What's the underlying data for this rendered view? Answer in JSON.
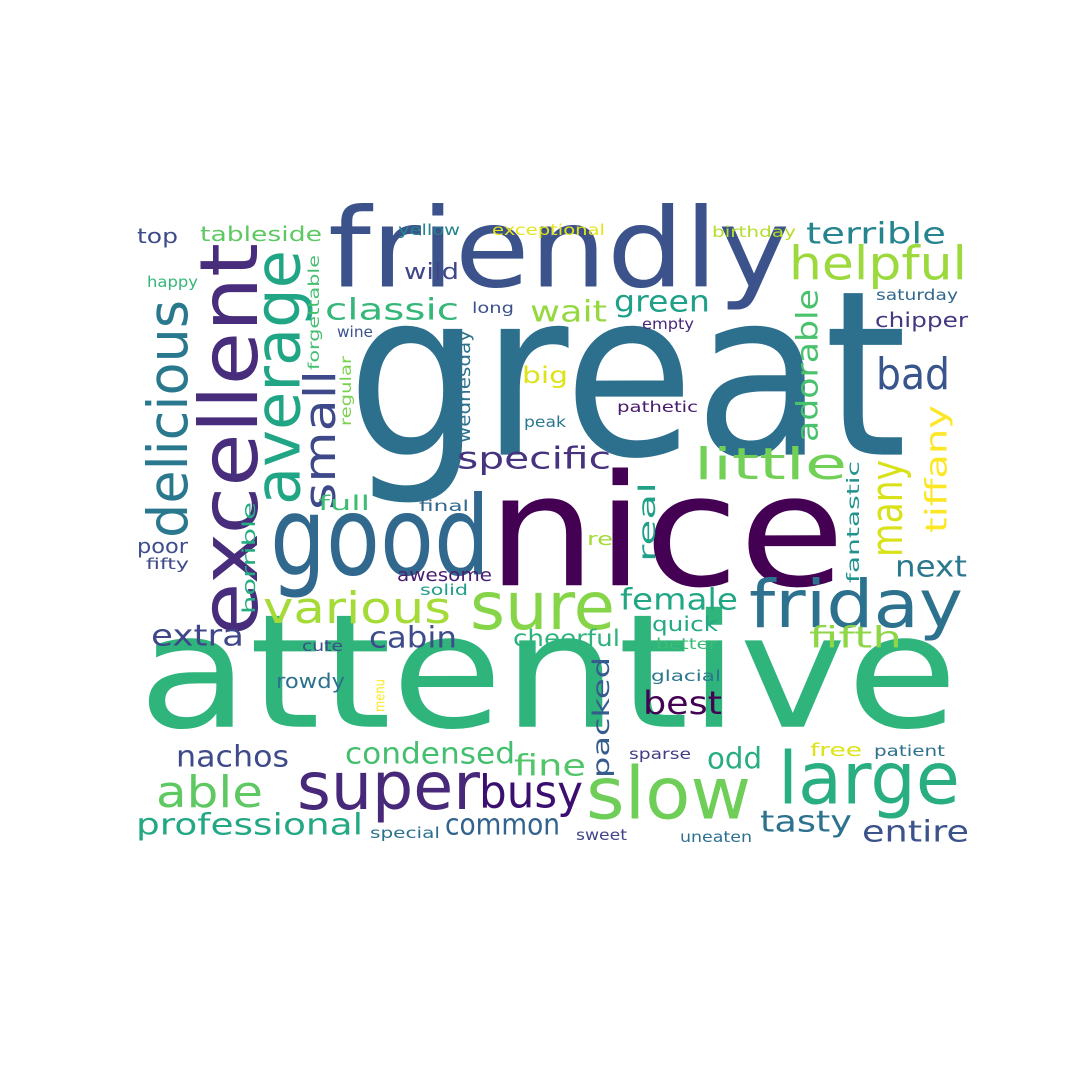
{
  "colormap": "viridis",
  "words": [
    {
      "text": "great",
      "color": "#2d708e"
    },
    {
      "text": "nice",
      "color": "#440154"
    },
    {
      "text": "attentive",
      "color": "#2fb47c"
    },
    {
      "text": "friendly",
      "color": "#3b528b"
    },
    {
      "text": "excellent",
      "color": "#472d7b"
    },
    {
      "text": "good",
      "color": "#31688e"
    },
    {
      "text": "average",
      "color": "#21a685"
    },
    {
      "text": "delicious",
      "color": "#2a788e"
    },
    {
      "text": "friday",
      "color": "#2c728e"
    },
    {
      "text": "super",
      "color": "#482878"
    },
    {
      "text": "slow",
      "color": "#6ece58"
    },
    {
      "text": "large",
      "color": "#28ae80"
    },
    {
      "text": "sure",
      "color": "#86d549"
    },
    {
      "text": "helpful",
      "color": "#9bd93c"
    },
    {
      "text": "various",
      "color": "#a5db36"
    },
    {
      "text": "little",
      "color": "#73d056"
    },
    {
      "text": "many",
      "color": "#d8e219"
    },
    {
      "text": "small",
      "color": "#3e4989"
    },
    {
      "text": "bad",
      "color": "#39568c"
    },
    {
      "text": "busy",
      "color": "#3b0f70"
    },
    {
      "text": "able",
      "color": "#5ec962"
    },
    {
      "text": "terrible",
      "color": "#25858e"
    },
    {
      "text": "professional",
      "color": "#22a884"
    },
    {
      "text": "specific",
      "color": "#46327e"
    },
    {
      "text": "classic",
      "color": "#35b779"
    },
    {
      "text": "wait",
      "color": "#95d840"
    },
    {
      "text": "green",
      "color": "#1fa088"
    },
    {
      "text": "condensed",
      "color": "#44bf70"
    },
    {
      "text": "tiffany",
      "color": "#fde725"
    },
    {
      "text": "adorable",
      "color": "#4ac16d"
    },
    {
      "text": "fifth",
      "color": "#8ed645"
    },
    {
      "text": "female",
      "color": "#22a785"
    },
    {
      "text": "next",
      "color": "#2a788e"
    },
    {
      "text": "tasty",
      "color": "#2c718e"
    },
    {
      "text": "entire",
      "color": "#3b528b"
    },
    {
      "text": "best",
      "color": "#440154"
    },
    {
      "text": "common",
      "color": "#33638d"
    },
    {
      "text": "nachos",
      "color": "#3e4a89"
    },
    {
      "text": "extra",
      "color": "#3f4788"
    },
    {
      "text": "cabin",
      "color": "#3e4c8a"
    },
    {
      "text": "cheerful",
      "color": "#2eb37c"
    },
    {
      "text": "fine",
      "color": "#52c569"
    },
    {
      "text": "odd",
      "color": "#27ad81"
    },
    {
      "text": "packed",
      "color": "#365c8d"
    },
    {
      "text": "real",
      "color": "#1fa088"
    },
    {
      "text": "big",
      "color": "#dde318"
    },
    {
      "text": "wild",
      "color": "#3f4788"
    },
    {
      "text": "top",
      "color": "#3e4a89"
    },
    {
      "text": "tableside",
      "color": "#5ec962"
    },
    {
      "text": "chipper",
      "color": "#453882"
    },
    {
      "text": "full",
      "color": "#3dbc74"
    },
    {
      "text": "rowdy",
      "color": "#2c728e"
    },
    {
      "text": "poor",
      "color": "#3d4e8a"
    },
    {
      "text": "quick",
      "color": "#23a983"
    },
    {
      "text": "awesome",
      "color": "#481f70"
    },
    {
      "text": "wednesday",
      "color": "#2d718e"
    },
    {
      "text": "horrible",
      "color": "#27ad81"
    },
    {
      "text": "fantastic",
      "color": "#20928c"
    },
    {
      "text": "re",
      "color": "#a2da37"
    },
    {
      "text": "free",
      "color": "#dde318"
    },
    {
      "text": "patient",
      "color": "#2d718e"
    },
    {
      "text": "exceptional",
      "color": "#e5e419"
    },
    {
      "text": "yellow",
      "color": "#25838e"
    },
    {
      "text": "birthday",
      "color": "#b5de2b"
    },
    {
      "text": "happy",
      "color": "#35b779"
    },
    {
      "text": "long",
      "color": "#3b528b"
    },
    {
      "text": "empty",
      "color": "#482878"
    },
    {
      "text": "saturday",
      "color": "#31688e"
    },
    {
      "text": "forgettable",
      "color": "#44bf70"
    },
    {
      "text": "wine",
      "color": "#3b528b"
    },
    {
      "text": "regular",
      "color": "#7ad151"
    },
    {
      "text": "peak",
      "color": "#2a788e"
    },
    {
      "text": "pathetic",
      "color": "#481b6d"
    },
    {
      "text": "final",
      "color": "#31688e"
    },
    {
      "text": "fifty",
      "color": "#3e4a89"
    },
    {
      "text": "solid",
      "color": "#1f9e89"
    },
    {
      "text": "cute",
      "color": "#3e4c8a"
    },
    {
      "text": "better",
      "color": "#3dbc74"
    },
    {
      "text": "glacial",
      "color": "#2a788e"
    },
    {
      "text": "menu",
      "color": "#fde725"
    },
    {
      "text": "sparse",
      "color": "#433e85"
    },
    {
      "text": "special",
      "color": "#2c728e"
    },
    {
      "text": "sweet",
      "color": "#404688"
    },
    {
      "text": "uneaten",
      "color": "#2c718e"
    }
  ]
}
